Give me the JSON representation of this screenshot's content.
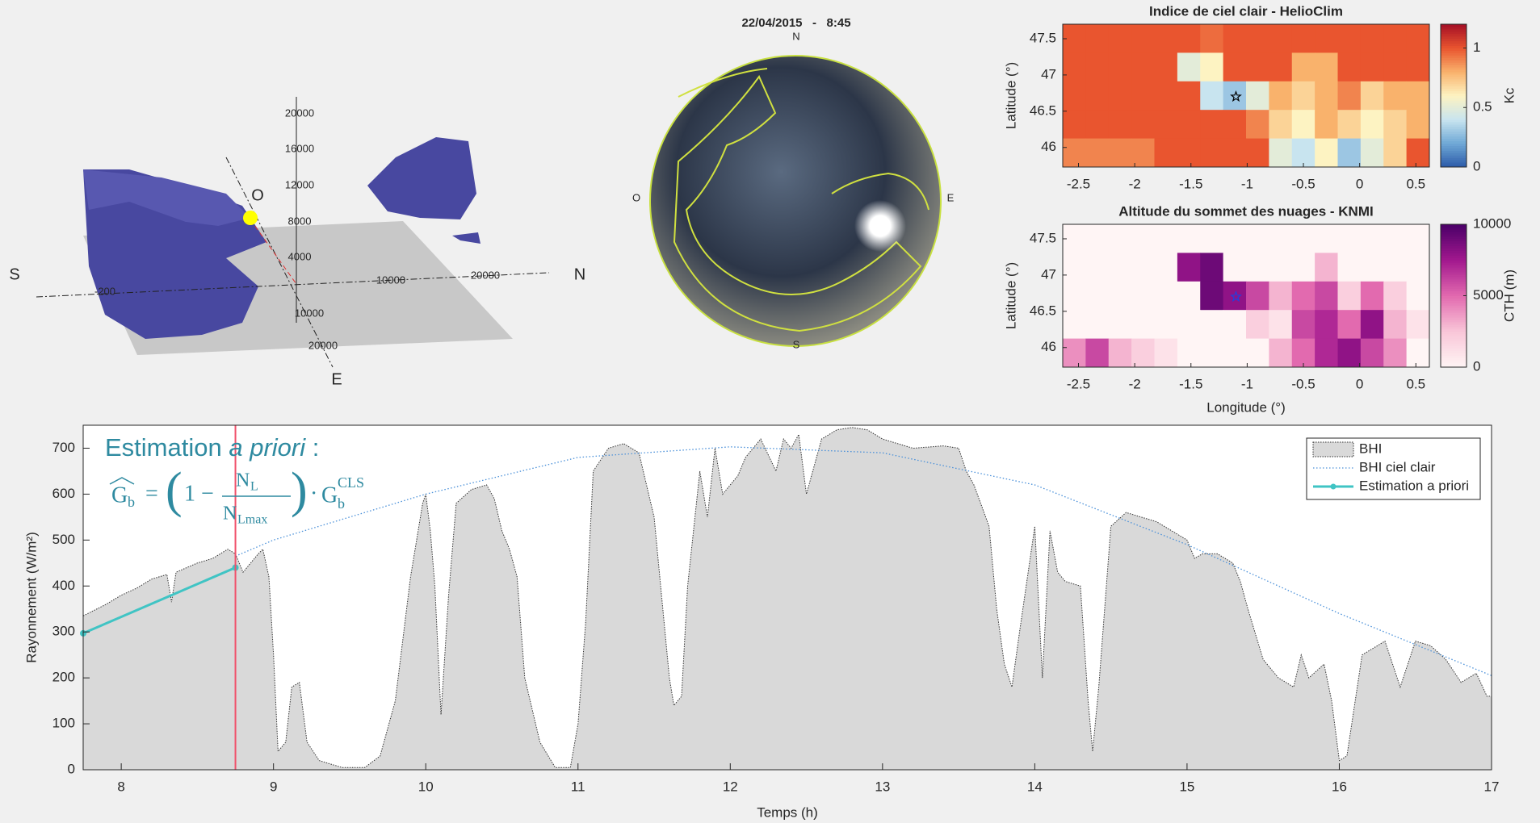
{
  "scene_3d": {
    "directions": [
      "S",
      "N",
      "O",
      "E"
    ],
    "tick_labels": [
      "20000",
      "16000",
      "12000",
      "8000",
      "4000",
      "10000",
      "20000",
      "-200",
      "10000",
      "20000"
    ]
  },
  "sky_image": {
    "datetime": "22/04/2015   -   8:45",
    "directions": [
      "N",
      "S",
      "O",
      "E"
    ]
  },
  "chart_data": [
    {
      "type": "heatmap",
      "title": "Indice de ciel clair - HelioClim",
      "ylabel": "Latitude (°)",
      "xlim": [
        -2.64,
        0.62
      ],
      "ylim": [
        45.73,
        47.7
      ],
      "xticks": [
        -2.5,
        -2,
        -1.5,
        -1,
        -0.5,
        0,
        0.5
      ],
      "yticks": [
        46,
        46.5,
        47,
        47.5
      ],
      "z": [
        [
          1,
          1,
          1,
          1,
          1,
          1,
          0.95,
          1,
          1,
          1,
          1,
          1,
          1,
          1,
          1,
          1
        ],
        [
          1,
          1,
          1,
          1,
          1,
          0.5,
          0.6,
          1,
          1,
          1,
          0.8,
          0.8,
          1,
          1,
          1,
          1
        ],
        [
          1,
          1,
          1,
          1,
          1,
          1,
          0.4,
          0.3,
          0.5,
          0.8,
          0.7,
          0.8,
          0.9,
          0.7,
          0.8,
          0.8
        ],
        [
          1,
          1,
          1,
          1,
          1,
          1,
          1,
          1,
          0.9,
          0.7,
          0.6,
          0.8,
          0.7,
          0.6,
          0.7,
          0.8
        ],
        [
          0.9,
          0.9,
          0.9,
          0.9,
          1,
          1,
          1,
          1,
          1,
          0.5,
          0.4,
          0.6,
          0.3,
          0.5,
          0.7,
          1
        ]
      ],
      "clim": [
        0,
        1.2
      ],
      "cticks": [
        0,
        0.5,
        1
      ],
      "clabel": "Kc",
      "colormap": [
        "#2b5aa8",
        "#6fa8d6",
        "#c8e4ef",
        "#fdf3c2",
        "#f9b26c",
        "#e9552f",
        "#a50f26"
      ],
      "marker": {
        "x": -1.1,
        "y": 46.7,
        "color": "#000000"
      }
    },
    {
      "type": "heatmap",
      "title": "Altitude du sommet des nuages - KNMI",
      "xlabel": "Longitude (°)",
      "ylabel": "Latitude (°)",
      "xlim": [
        -2.64,
        0.62
      ],
      "ylim": [
        45.73,
        47.7
      ],
      "xticks": [
        -2.5,
        -2,
        -1.5,
        -1,
        -0.5,
        0,
        0.5
      ],
      "yticks": [
        46,
        46.5,
        47,
        47.5
      ],
      "z": [
        [
          0,
          0,
          0,
          0,
          0,
          0,
          0,
          0,
          0,
          0,
          0,
          0,
          0,
          0,
          0,
          0
        ],
        [
          0,
          0,
          0,
          0,
          0,
          8000,
          9000,
          0,
          0,
          0,
          0,
          3000,
          0,
          0,
          0,
          0
        ],
        [
          0,
          0,
          0,
          0,
          0,
          0,
          9000,
          8000,
          6000,
          3000,
          5000,
          6000,
          2000,
          5000,
          2000,
          0
        ],
        [
          0,
          0,
          0,
          0,
          0,
          0,
          0,
          0,
          2000,
          1000,
          6000,
          7000,
          5000,
          8000,
          3000,
          1000
        ],
        [
          4000,
          6000,
          3000,
          2000,
          1000,
          0,
          0,
          0,
          0,
          3000,
          5000,
          7000,
          8000,
          6000,
          4000,
          0
        ]
      ],
      "clim": [
        0,
        10000
      ],
      "cticks": [
        0,
        5000,
        10000
      ],
      "clabel": "CTH (m)",
      "colormap": [
        "#fff5f5",
        "#f9c6d8",
        "#e26aaf",
        "#a2188e",
        "#4a0068"
      ],
      "marker": {
        "x": -1.1,
        "y": 46.7,
        "color": "#2040e0"
      }
    },
    {
      "type": "area",
      "xlabel": "Temps (h)",
      "ylabel": "Rayonnement (W/m²)",
      "xlim": [
        7.75,
        17
      ],
      "ylim": [
        0,
        750
      ],
      "xticks": [
        8,
        9,
        10,
        11,
        12,
        13,
        14,
        15,
        16,
        17
      ],
      "yticks": [
        0,
        100,
        200,
        300,
        400,
        500,
        600,
        700
      ],
      "cursor_x": 8.75,
      "cursor_color": "#f0506a",
      "annotation": {
        "title": "Estimation ",
        "title_italic": "a priori",
        "title_suffix": " :",
        "formula": {
          "lhs": "G",
          "lhs_sub": "b",
          "eq": "=",
          "open": "(",
          "one_minus": "1 −",
          "num": "N",
          "num_sub": "L",
          "den": "N",
          "den_sub": "Lmax",
          "close": ")",
          "dot": "·",
          "rhs": "G",
          "rhs_sub": "b",
          "rhs_sup": "CLS"
        }
      },
      "series": [
        {
          "name": "BHI",
          "kind": "area",
          "color": "#d9d9d9",
          "x": [
            7.75,
            7.9,
            8.0,
            8.1,
            8.2,
            8.3,
            8.33,
            8.36,
            8.5,
            8.6,
            8.65,
            8.7,
            8.75,
            8.8,
            8.85,
            8.9,
            8.93,
            8.97,
            9.0,
            9.03,
            9.08,
            9.12,
            9.17,
            9.22,
            9.3,
            9.45,
            9.6,
            9.7,
            9.8,
            9.9,
            9.98,
            10.0,
            10.03,
            10.06,
            10.1,
            10.15,
            10.2,
            10.3,
            10.4,
            10.45,
            10.5,
            10.55,
            10.6,
            10.65,
            10.75,
            10.85,
            10.95,
            11.0,
            11.05,
            11.1,
            11.2,
            11.3,
            11.4,
            11.5,
            11.6,
            11.63,
            11.68,
            11.72,
            11.8,
            11.85,
            11.9,
            11.95,
            12.05,
            12.1,
            12.2,
            12.3,
            12.35,
            12.4,
            12.45,
            12.5,
            12.6,
            12.7,
            12.8,
            12.9,
            13.0,
            13.2,
            13.4,
            13.5,
            13.55,
            13.6,
            13.7,
            13.75,
            13.8,
            13.85,
            13.9,
            14.0,
            14.05,
            14.1,
            14.15,
            14.2,
            14.3,
            14.35,
            14.38,
            14.42,
            14.5,
            14.6,
            14.8,
            14.95,
            15.0,
            15.05,
            15.1,
            15.2,
            15.3,
            15.35,
            15.4,
            15.5,
            15.6,
            15.7,
            15.75,
            15.8,
            15.9,
            15.95,
            16.0,
            16.05,
            16.15,
            16.3,
            16.4,
            16.45,
            16.5,
            16.6,
            16.7,
            16.8,
            16.9,
            16.97,
            17.0
          ],
          "values": [
            335,
            360,
            380,
            395,
            415,
            425,
            365,
            430,
            450,
            460,
            470,
            480,
            470,
            430,
            450,
            470,
            480,
            420,
            250,
            40,
            60,
            180,
            190,
            60,
            20,
            5,
            5,
            30,
            150,
            420,
            580,
            600,
            520,
            400,
            120,
            380,
            580,
            610,
            620,
            590,
            520,
            480,
            420,
            200,
            60,
            5,
            5,
            100,
            320,
            650,
            700,
            710,
            690,
            550,
            200,
            140,
            160,
            400,
            650,
            550,
            700,
            600,
            640,
            680,
            720,
            650,
            720,
            700,
            730,
            600,
            720,
            740,
            745,
            740,
            720,
            700,
            705,
            700,
            650,
            620,
            530,
            350,
            230,
            180,
            300,
            530,
            200,
            520,
            430,
            410,
            400,
            150,
            40,
            180,
            530,
            560,
            540,
            510,
            500,
            460,
            470,
            470,
            450,
            410,
            350,
            240,
            200,
            180,
            250,
            200,
            230,
            150,
            20,
            30,
            250,
            280,
            180,
            230,
            280,
            270,
            240,
            190,
            210,
            160,
            160
          ]
        },
        {
          "name": "BHI ciel clair",
          "kind": "dotted",
          "color": "#4a90d9",
          "x": [
            8.75,
            9,
            10,
            11,
            12,
            13,
            14,
            15,
            16,
            17
          ],
          "values": [
            465,
            500,
            600,
            680,
            703,
            690,
            620,
            490,
            340,
            205
          ]
        },
        {
          "name": "Estimation a priori",
          "kind": "line",
          "color": "#40c4c4",
          "x": [
            7.75,
            8.75
          ],
          "values": [
            297,
            440
          ]
        }
      ]
    }
  ]
}
